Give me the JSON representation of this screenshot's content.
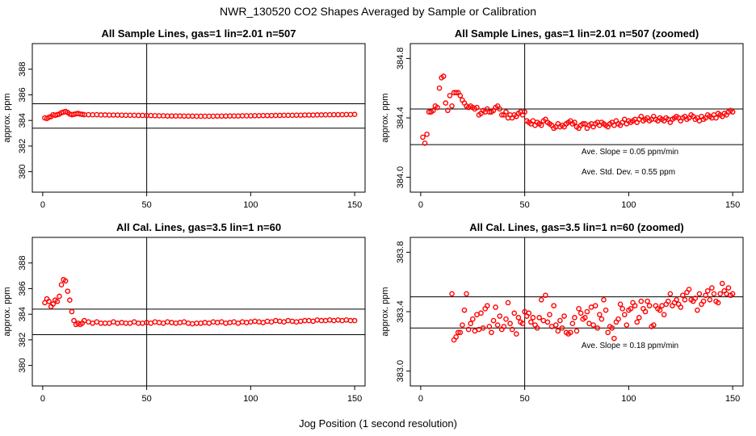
{
  "figure": {
    "main_title": "NWR_130520  CO2 Shapes Averaged by Sample or Calibration",
    "xlabel": "Jog Position (1 second resolution)"
  },
  "chart_data": [
    {
      "type": "scatter",
      "title": "All Sample Lines, gas=1 lin=2.01 n=507",
      "xlabel": "",
      "ylabel": "approx. ppm",
      "xlim": [
        -5,
        155
      ],
      "ylim": [
        378.4,
        390.0
      ],
      "xticks": [
        0,
        50,
        100,
        150
      ],
      "yticks": [
        380,
        382,
        384,
        386,
        388
      ],
      "hlines": [
        385.3,
        383.4
      ],
      "vline": 50,
      "grid": false,
      "legend": "none",
      "marker_color": "#ff0000",
      "series": [
        {
          "x": [
            1,
            2,
            3,
            4,
            5,
            6,
            7,
            8,
            9,
            10,
            11,
            12,
            13,
            14,
            15,
            16,
            17,
            18,
            19,
            20,
            22,
            24,
            26,
            28,
            30,
            32,
            34,
            36,
            38,
            40,
            42,
            44,
            46,
            48,
            50,
            52,
            54,
            56,
            58,
            60,
            62,
            64,
            66,
            68,
            70,
            72,
            74,
            76,
            78,
            80,
            82,
            84,
            86,
            88,
            90,
            92,
            94,
            96,
            98,
            100,
            102,
            104,
            106,
            108,
            110,
            112,
            114,
            116,
            118,
            120,
            122,
            124,
            126,
            128,
            130,
            132,
            134,
            136,
            138,
            140,
            142,
            144,
            146,
            148,
            150
          ],
          "y": [
            384.2,
            384.15,
            384.25,
            384.3,
            384.45,
            384.4,
            384.45,
            384.5,
            384.6,
            384.65,
            384.7,
            384.62,
            384.5,
            384.45,
            384.48,
            384.52,
            384.55,
            384.5,
            384.48,
            384.45,
            384.45,
            384.44,
            384.45,
            384.43,
            384.43,
            384.42,
            384.42,
            384.42,
            384.41,
            384.4,
            384.4,
            384.4,
            384.39,
            384.39,
            384.38,
            384.38,
            384.37,
            384.36,
            384.36,
            384.35,
            384.35,
            384.35,
            384.35,
            384.34,
            384.34,
            384.34,
            384.33,
            384.33,
            384.33,
            384.33,
            384.33,
            384.34,
            384.34,
            384.34,
            384.35,
            384.35,
            384.35,
            384.36,
            384.36,
            384.36,
            384.37,
            384.37,
            384.38,
            384.38,
            384.38,
            384.39,
            384.39,
            384.4,
            384.4,
            384.4,
            384.41,
            384.41,
            384.42,
            384.42,
            384.42,
            384.43,
            384.43,
            384.44,
            384.44,
            384.45,
            384.45,
            384.45,
            384.46,
            384.46,
            384.47
          ]
        }
      ],
      "annotations": []
    },
    {
      "type": "scatter",
      "title": "All Sample Lines, gas=1 lin=2.01 n=507 (zoomed)",
      "xlabel": "",
      "ylabel": "approx. ppm",
      "xlim": [
        -5,
        155
      ],
      "ylim": [
        383.9,
        384.9
      ],
      "xticks": [
        0,
        50,
        100,
        150
      ],
      "yticks": [
        384.0,
        384.4,
        384.8
      ],
      "hlines": [
        384.46,
        384.22
      ],
      "vline": 50,
      "grid": false,
      "legend": "none",
      "marker_color": "#ff0000",
      "series": [
        {
          "x": [
            1,
            2,
            3,
            4,
            5,
            6,
            7,
            8,
            9,
            10,
            11,
            12,
            13,
            14,
            15,
            16,
            17,
            18,
            19,
            20,
            21,
            22,
            23,
            24,
            25,
            26,
            27,
            28,
            29,
            30,
            31,
            32,
            33,
            34,
            35,
            36,
            37,
            38,
            39,
            40,
            41,
            42,
            43,
            44,
            45,
            46,
            47,
            48,
            49,
            50,
            51,
            52,
            53,
            54,
            55,
            56,
            57,
            58,
            59,
            60,
            61,
            62,
            63,
            64,
            65,
            66,
            67,
            68,
            69,
            70,
            71,
            72,
            73,
            74,
            75,
            76,
            77,
            78,
            79,
            80,
            81,
            82,
            83,
            84,
            85,
            86,
            87,
            88,
            89,
            90,
            91,
            92,
            93,
            94,
            95,
            96,
            97,
            98,
            99,
            100,
            101,
            102,
            103,
            104,
            105,
            106,
            107,
            108,
            109,
            110,
            111,
            112,
            113,
            114,
            115,
            116,
            117,
            118,
            119,
            120,
            121,
            122,
            123,
            124,
            125,
            126,
            127,
            128,
            129,
            130,
            131,
            132,
            133,
            134,
            135,
            136,
            137,
            138,
            139,
            140,
            141,
            142,
            143,
            144,
            145,
            146,
            147,
            148,
            149,
            150
          ],
          "y": [
            384.27,
            384.23,
            384.29,
            384.44,
            384.44,
            384.45,
            384.48,
            384.47,
            384.6,
            384.67,
            384.68,
            384.5,
            384.45,
            384.55,
            384.48,
            384.57,
            384.57,
            384.57,
            384.55,
            384.52,
            384.5,
            384.48,
            384.47,
            384.48,
            384.47,
            384.46,
            384.47,
            384.42,
            384.43,
            384.45,
            384.44,
            384.46,
            384.44,
            384.44,
            384.45,
            384.47,
            384.48,
            384.46,
            384.42,
            384.42,
            384.44,
            384.4,
            384.42,
            384.4,
            384.42,
            384.41,
            384.43,
            384.44,
            384.42,
            384.44,
            384.38,
            384.37,
            384.36,
            384.38,
            384.35,
            384.37,
            384.36,
            384.35,
            384.38,
            384.39,
            384.37,
            384.36,
            384.35,
            384.33,
            384.34,
            384.36,
            384.34,
            384.35,
            384.34,
            384.36,
            384.37,
            384.38,
            384.36,
            384.37,
            384.34,
            384.33,
            384.35,
            384.36,
            384.36,
            384.33,
            384.35,
            384.36,
            384.34,
            384.36,
            384.37,
            384.35,
            384.37,
            384.36,
            384.35,
            384.34,
            384.36,
            384.37,
            384.35,
            384.38,
            384.36,
            384.35,
            384.37,
            384.39,
            384.36,
            384.38,
            384.37,
            384.38,
            384.39,
            384.37,
            384.39,
            384.41,
            384.38,
            384.39,
            384.4,
            384.38,
            384.39,
            384.41,
            384.39,
            384.38,
            384.4,
            384.39,
            384.38,
            384.4,
            384.39,
            384.37,
            384.39,
            384.4,
            384.41,
            384.4,
            384.38,
            384.4,
            384.41,
            384.39,
            384.4,
            384.42,
            384.41,
            384.39,
            384.4,
            384.38,
            384.41,
            384.39,
            384.4,
            384.42,
            384.41,
            384.4,
            384.42,
            384.4,
            384.43,
            384.42,
            384.41,
            384.43,
            384.42,
            384.44,
            384.45,
            384.44
          ]
        }
      ],
      "annotations": [
        "Ave. Slope =  0.05  ppm/min",
        "Ave. Std. Dev. =  0.55  ppm"
      ]
    },
    {
      "type": "scatter",
      "title": "All Cal. Lines, gas=3.5 lin=1 n=60",
      "xlabel": "",
      "ylabel": "approx. ppm",
      "xlim": [
        -5,
        155
      ],
      "ylim": [
        378.4,
        390.0
      ],
      "xticks": [
        0,
        50,
        100,
        150
      ],
      "yticks": [
        380,
        382,
        384,
        386,
        388
      ],
      "hlines": [
        384.4,
        382.4
      ],
      "vline": 50,
      "grid": false,
      "legend": "none",
      "marker_color": "#ff0000",
      "series": [
        {
          "x": [
            1,
            2,
            3,
            4,
            5,
            6,
            7,
            8,
            9,
            10,
            11,
            12,
            13,
            14,
            15,
            16,
            17,
            18,
            19,
            20,
            22,
            24,
            26,
            28,
            30,
            32,
            34,
            36,
            38,
            40,
            42,
            44,
            46,
            48,
            50,
            52,
            54,
            56,
            58,
            60,
            62,
            64,
            66,
            68,
            70,
            72,
            74,
            76,
            78,
            80,
            82,
            84,
            86,
            88,
            90,
            92,
            94,
            96,
            98,
            100,
            102,
            104,
            106,
            108,
            110,
            112,
            114,
            116,
            118,
            120,
            122,
            124,
            126,
            128,
            130,
            132,
            134,
            136,
            138,
            140,
            142,
            144,
            146,
            148,
            150
          ],
          "y": [
            384.9,
            385.2,
            385.0,
            384.6,
            384.8,
            385.1,
            385.0,
            385.4,
            386.3,
            386.7,
            386.6,
            385.8,
            385.1,
            384.2,
            383.5,
            383.2,
            383.3,
            383.2,
            383.3,
            383.5,
            383.4,
            383.3,
            383.4,
            383.3,
            383.3,
            383.3,
            383.4,
            383.3,
            383.35,
            383.3,
            383.3,
            383.4,
            383.3,
            383.3,
            383.35,
            383.3,
            383.4,
            383.35,
            383.3,
            383.4,
            383.35,
            383.3,
            383.35,
            383.4,
            383.3,
            383.25,
            383.3,
            383.3,
            383.35,
            383.3,
            383.4,
            383.35,
            383.4,
            383.3,
            383.35,
            383.4,
            383.3,
            383.4,
            383.35,
            383.4,
            383.45,
            383.4,
            383.35,
            383.45,
            383.4,
            383.5,
            383.45,
            383.4,
            383.5,
            383.45,
            383.4,
            383.45,
            383.5,
            383.5,
            383.45,
            383.55,
            383.5,
            383.5,
            383.55,
            383.5,
            383.55,
            383.5,
            383.55,
            383.5,
            383.5
          ]
        }
      ],
      "annotations": []
    },
    {
      "type": "scatter",
      "title": "All Cal. Lines, gas=3.5 lin=1 n=60 (zoomed)",
      "xlabel": "",
      "ylabel": "approx. ppm",
      "xlim": [
        -5,
        155
      ],
      "ylim": [
        382.9,
        383.9
      ],
      "xticks": [
        0,
        50,
        100,
        150
      ],
      "yticks": [
        383.0,
        383.4,
        383.8
      ],
      "hlines": [
        383.5,
        383.29
      ],
      "vline": 50,
      "grid": false,
      "legend": "none",
      "marker_color": "#ff0000",
      "series": [
        {
          "x": [
            15,
            16,
            17,
            18,
            19,
            20,
            21,
            22,
            23,
            24,
            25,
            26,
            27,
            28,
            29,
            30,
            31,
            32,
            33,
            34,
            35,
            36,
            37,
            38,
            39,
            40,
            41,
            42,
            43,
            44,
            45,
            46,
            47,
            48,
            49,
            50,
            51,
            52,
            53,
            54,
            55,
            56,
            57,
            58,
            59,
            60,
            61,
            62,
            63,
            64,
            65,
            66,
            67,
            68,
            69,
            70,
            71,
            72,
            73,
            74,
            75,
            76,
            77,
            78,
            79,
            80,
            81,
            82,
            83,
            84,
            85,
            86,
            87,
            88,
            89,
            90,
            91,
            92,
            93,
            94,
            95,
            96,
            97,
            98,
            99,
            100,
            101,
            102,
            103,
            104,
            105,
            106,
            107,
            108,
            109,
            110,
            111,
            112,
            113,
            114,
            115,
            116,
            117,
            118,
            119,
            120,
            121,
            122,
            123,
            124,
            125,
            126,
            127,
            128,
            129,
            130,
            131,
            132,
            133,
            134,
            135,
            136,
            137,
            138,
            139,
            140,
            141,
            142,
            143,
            144,
            145,
            146,
            147,
            148,
            149,
            150
          ],
          "y": [
            383.52,
            383.21,
            383.23,
            383.26,
            383.26,
            383.31,
            383.41,
            383.52,
            383.28,
            383.32,
            383.35,
            383.27,
            383.38,
            383.28,
            383.39,
            383.29,
            383.42,
            383.44,
            383.3,
            383.26,
            383.34,
            383.43,
            383.31,
            383.37,
            383.28,
            383.3,
            383.35,
            383.46,
            383.32,
            383.28,
            383.39,
            383.25,
            383.36,
            383.33,
            383.32,
            383.4,
            383.37,
            383.39,
            383.33,
            383.36,
            383.31,
            383.29,
            383.36,
            383.48,
            383.34,
            383.51,
            383.33,
            383.38,
            383.3,
            383.44,
            383.31,
            383.27,
            383.34,
            383.29,
            383.37,
            383.26,
            383.25,
            383.26,
            383.32,
            383.36,
            383.27,
            383.42,
            383.39,
            383.35,
            383.36,
            383.4,
            383.32,
            383.43,
            383.31,
            383.44,
            383.29,
            383.38,
            383.35,
            383.48,
            383.41,
            383.26,
            383.3,
            383.29,
            383.22,
            383.33,
            383.35,
            383.45,
            383.42,
            383.38,
            383.31,
            383.41,
            383.42,
            383.46,
            383.44,
            383.33,
            383.36,
            383.47,
            383.42,
            383.4,
            383.47,
            383.44,
            383.3,
            383.31,
            383.44,
            383.42,
            383.41,
            383.44,
            383.38,
            383.45,
            383.47,
            383.52,
            383.44,
            383.46,
            383.48,
            383.45,
            383.43,
            383.51,
            383.48,
            383.53,
            383.55,
            383.48,
            383.47,
            383.49,
            383.41,
            383.52,
            383.45,
            383.47,
            383.51,
            383.54,
            383.48,
            383.56,
            383.52,
            383.47,
            383.46,
            383.52,
            383.59,
            383.54,
            383.52,
            383.56,
            383.51,
            383.52
          ]
        }
      ],
      "annotations": [
        "Ave. Slope =  0.18  ppm/min"
      ]
    }
  ]
}
